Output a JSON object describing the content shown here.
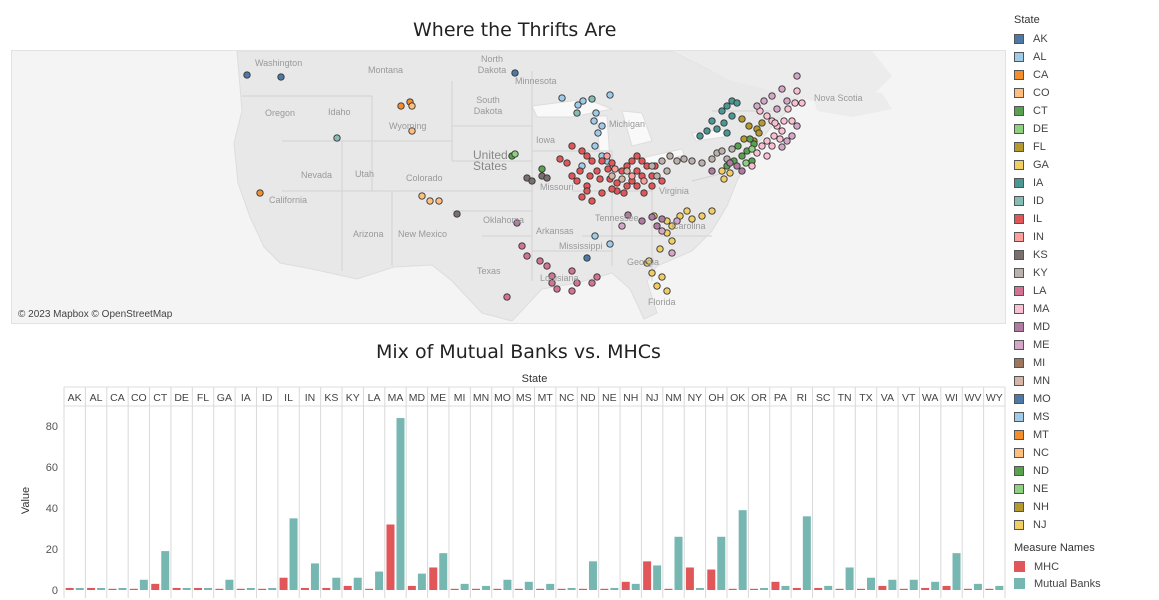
{
  "map": {
    "title": "Where the Thrifts Are",
    "attribution": "© 2023 Mapbox © OpenStreetMap",
    "labels": [
      "Washington",
      "Montana",
      "North Dakota",
      "Minnesota",
      "Oregon",
      "Idaho",
      "Wyoming",
      "South Dakota",
      "Michigan",
      "Nova Scotia",
      "Iowa",
      "Nevada",
      "Utah",
      "United States",
      "Colorado",
      "California",
      "Missouri",
      "Virginia",
      "Oklahoma",
      "Arkansas",
      "Tennessee",
      "Carolina",
      "Arizona",
      "New Mexico",
      "Mississippi",
      "Texas",
      "Louisiana",
      "Georgia",
      "Florida"
    ]
  },
  "legend": {
    "title": "State",
    "items": [
      {
        "label": "AK",
        "color": "#4e79a7"
      },
      {
        "label": "AL",
        "color": "#a0cbe8"
      },
      {
        "label": "CA",
        "color": "#f28e2b"
      },
      {
        "label": "CO",
        "color": "#ffbe7d"
      },
      {
        "label": "CT",
        "color": "#59a14f"
      },
      {
        "label": "DE",
        "color": "#8cd17d"
      },
      {
        "label": "FL",
        "color": "#b6992d"
      },
      {
        "label": "GA",
        "color": "#f1ce63"
      },
      {
        "label": "IA",
        "color": "#499894"
      },
      {
        "label": "ID",
        "color": "#86bcb6"
      },
      {
        "label": "IL",
        "color": "#e15759"
      },
      {
        "label": "IN",
        "color": "#ff9d9a"
      },
      {
        "label": "KS",
        "color": "#79706e"
      },
      {
        "label": "KY",
        "color": "#bab0ac"
      },
      {
        "label": "LA",
        "color": "#d37295"
      },
      {
        "label": "MA",
        "color": "#fabfd2"
      },
      {
        "label": "MD",
        "color": "#b07aa1"
      },
      {
        "label": "ME",
        "color": "#d4a6c8"
      },
      {
        "label": "MI",
        "color": "#9d7660"
      },
      {
        "label": "MN",
        "color": "#d7b5a6"
      },
      {
        "label": "MO",
        "color": "#4e79a7"
      },
      {
        "label": "MS",
        "color": "#a0cbe8"
      },
      {
        "label": "MT",
        "color": "#f28e2b"
      },
      {
        "label": "NC",
        "color": "#ffbe7d"
      },
      {
        "label": "ND",
        "color": "#59a14f"
      },
      {
        "label": "NE",
        "color": "#8cd17d"
      },
      {
        "label": "NH",
        "color": "#b6992d"
      },
      {
        "label": "NJ",
        "color": "#f1ce63"
      }
    ]
  },
  "measure_legend": {
    "title": "Measure Names",
    "items": [
      {
        "label": "MHC",
        "color": "#e15759"
      },
      {
        "label": "Mutual Banks",
        "color": "#76b7b2"
      }
    ]
  },
  "chart_data": {
    "type": "bar",
    "title": "Mix of Mutual Banks vs. MHCs",
    "header_label": "State",
    "ylabel": "Value",
    "ylim": [
      0,
      85
    ],
    "yticks": [
      0,
      20,
      40,
      60,
      80
    ],
    "categories": [
      "AK",
      "AL",
      "CA",
      "CO",
      "CT",
      "DE",
      "FL",
      "GA",
      "IA",
      "ID",
      "IL",
      "IN",
      "KS",
      "KY",
      "LA",
      "MA",
      "MD",
      "ME",
      "MI",
      "MN",
      "MO",
      "MS",
      "MT",
      "NC",
      "ND",
      "NE",
      "NH",
      "NJ",
      "NM",
      "NY",
      "OH",
      "OK",
      "OR",
      "PA",
      "RI",
      "SC",
      "TN",
      "TX",
      "VA",
      "VT",
      "WA",
      "WI",
      "WV",
      "WY"
    ],
    "series": [
      {
        "name": "MHC",
        "color": "#e15759",
        "values": [
          1,
          1,
          0,
          0,
          3,
          1,
          1,
          0,
          0,
          0,
          6,
          1,
          1,
          2,
          0,
          32,
          2,
          11,
          0,
          0,
          0,
          0,
          0,
          0,
          0,
          0,
          4,
          14,
          0,
          11,
          10,
          0,
          0,
          4,
          1,
          1,
          0,
          0,
          2,
          0,
          1,
          2,
          0,
          0
        ]
      },
      {
        "name": "Mutual Banks",
        "color": "#76b7b2",
        "values": [
          1,
          1,
          1,
          5,
          19,
          1,
          1,
          5,
          1,
          1,
          35,
          13,
          6,
          6,
          9,
          84,
          8,
          18,
          3,
          2,
          5,
          4,
          3,
          1,
          14,
          1,
          3,
          12,
          26,
          1,
          26,
          39,
          1,
          2,
          36,
          2,
          11,
          6,
          5,
          5,
          4,
          18,
          3,
          2
        ]
      }
    ]
  }
}
